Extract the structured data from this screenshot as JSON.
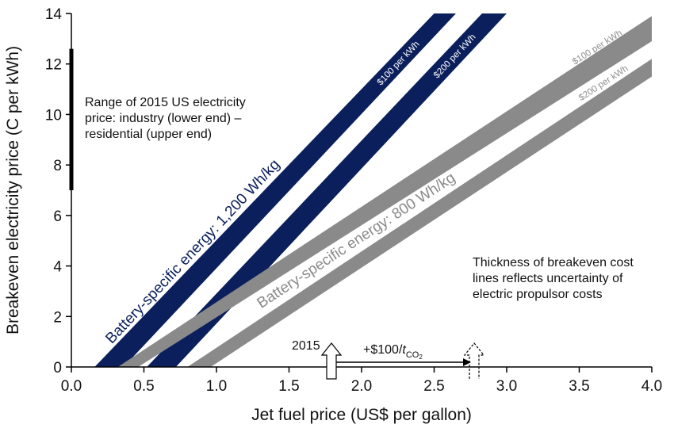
{
  "chart_data": {
    "type": "line",
    "xlabel": "Jet fuel price (US$ per gallon)",
    "ylabel": "Breakeven electricity price (C per kWh)",
    "xlim": [
      0,
      4
    ],
    "ylim": [
      0,
      14
    ],
    "x_ticks": [
      "0.0",
      "0.5",
      "1.0",
      "1.5",
      "2.0",
      "2.5",
      "3.0",
      "3.5",
      "4.0"
    ],
    "y_ticks": [
      "0",
      "2",
      "4",
      "6",
      "8",
      "10",
      "12",
      "14"
    ],
    "grid": false,
    "series": [
      {
        "name": "$100 per kWh",
        "energy_group": "1,200 Wh/kg",
        "color": "#0b1f5c",
        "lower_edge": [
          [
            0.36,
            0
          ],
          [
            2.65,
            14
          ]
        ],
        "upper_edge": [
          [
            0.16,
            0
          ],
          [
            2.5,
            14
          ]
        ]
      },
      {
        "name": "$200 per kWh",
        "energy_group": "1,200 Wh/kg",
        "color": "#0b1f5c",
        "lower_edge": [
          [
            0.72,
            0
          ],
          [
            3.0,
            14
          ]
        ],
        "upper_edge": [
          [
            0.52,
            0
          ],
          [
            2.83,
            14
          ]
        ]
      },
      {
        "name": "$100 per kWh",
        "energy_group": "800 Wh/kg",
        "color": "#8a8a8a",
        "lower_edge": [
          [
            0.46,
            0
          ],
          [
            4.0,
            12.9
          ]
        ],
        "upper_edge": [
          [
            0.32,
            0
          ],
          [
            4.0,
            13.9
          ]
        ]
      },
      {
        "name": "$200 per kWh",
        "energy_group": "800 Wh/kg",
        "color": "#8a8a8a",
        "lower_edge": [
          [
            0.96,
            0
          ],
          [
            4.0,
            11.5
          ]
        ],
        "upper_edge": [
          [
            0.8,
            0
          ],
          [
            4.0,
            12.2
          ]
        ]
      }
    ],
    "band_labels": {
      "energy_1200": "Battery-specific energy: 1,200 Wh/kg",
      "energy_800": "Battery-specific energy: 800 Wh/kg",
      "blue_100": "$100 per kWh",
      "blue_200": "$200 per kWh",
      "grey_100": "$100 per kWh",
      "grey_200": "$200 per kWh"
    },
    "electricity_range": {
      "y_low": 7.0,
      "y_high": 12.6
    },
    "annotations": {
      "range_line1": "Range of 2015 US electricity",
      "range_line2": "price: industry (lower end) –",
      "range_line3": "residential (upper end)",
      "thickness_line1": "Thickness of breakeven cost",
      "thickness_line2": "lines reflects uncertainty of",
      "thickness_line3": "electric propulsor costs"
    },
    "price_arrow": {
      "year_label": "2015",
      "year_x": 1.79,
      "tax_prefix": "+$100/",
      "tax_t": "t",
      "tax_sub": "CO",
      "tax_sub2": "2",
      "shifted_x": 2.79
    }
  }
}
